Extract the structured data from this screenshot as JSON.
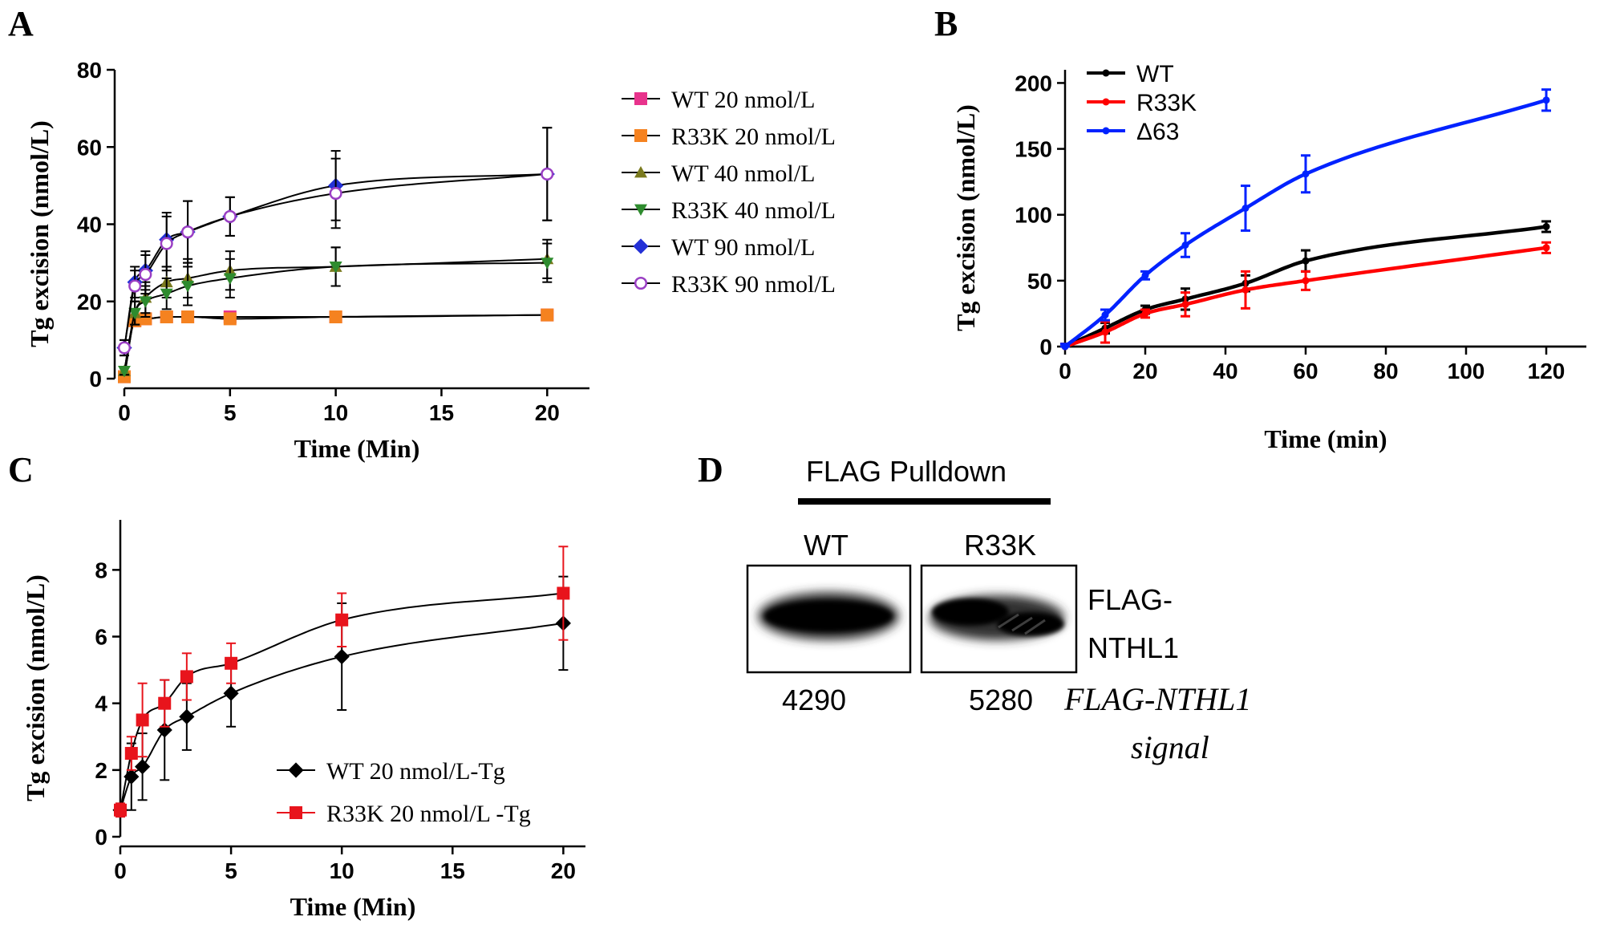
{
  "panels": {
    "A": "A",
    "B": "B",
    "C": "C",
    "D": "D"
  },
  "chart_data": [
    {
      "id": "A",
      "type": "scatter",
      "xlabel": "Time (Min)",
      "ylabel": "Tg excision (nmol/L)",
      "xlim": [
        0,
        22
      ],
      "ylim": [
        0,
        80
      ],
      "xticks": [
        0,
        5,
        10,
        15,
        20
      ],
      "yticks": [
        0,
        20,
        40,
        60,
        80
      ],
      "legend_position": "right",
      "series": [
        {
          "name": "WT 20 nmol/L",
          "color": "#e8338c",
          "marker": "square",
          "x": [
            0,
            0.5,
            1,
            2,
            3,
            5,
            10,
            20
          ],
          "y": [
            0.5,
            15,
            15.5,
            16,
            16,
            16,
            16,
            16.5
          ],
          "err": [
            0.5,
            1,
            1,
            1,
            1,
            1,
            1,
            1
          ]
        },
        {
          "name": "R33K 20 nmol/L",
          "color": "#f58220",
          "marker": "square",
          "x": [
            0,
            0.5,
            1,
            2,
            3,
            5,
            10,
            20
          ],
          "y": [
            0.5,
            15,
            15.5,
            16,
            16,
            15.5,
            16,
            16.5
          ],
          "err": [
            0.5,
            1,
            1,
            1,
            1,
            1,
            1,
            1
          ]
        },
        {
          "name": "WT 40 nmol/L",
          "color": "#7a7a1e",
          "marker": "triangle-up",
          "x": [
            0,
            0.5,
            1,
            2,
            3,
            5,
            10,
            20
          ],
          "y": [
            2,
            17,
            21,
            25,
            26,
            28,
            29,
            31
          ],
          "err": [
            1,
            3,
            4,
            4,
            5,
            5,
            5,
            5
          ]
        },
        {
          "name": "R33K 40 nmol/L",
          "color": "#2e8b2e",
          "marker": "triangle-down",
          "x": [
            0,
            0.5,
            1,
            2,
            3,
            5,
            10,
            20
          ],
          "y": [
            2,
            17,
            20,
            22,
            24,
            26,
            29,
            30
          ],
          "err": [
            1,
            3,
            4,
            4,
            5,
            5,
            5,
            5
          ]
        },
        {
          "name": "WT 90 nmol/L",
          "color": "#2431d6",
          "marker": "diamond",
          "x": [
            0,
            0.5,
            1,
            2,
            3,
            5,
            10,
            20
          ],
          "y": [
            8,
            25,
            28,
            36,
            38,
            42,
            50,
            53
          ],
          "err": [
            2,
            4,
            5,
            7,
            8,
            5,
            9,
            12
          ]
        },
        {
          "name": "R33K 90 nmol/L",
          "color": "#9a3fc4",
          "marker": "open-circle",
          "x": [
            0,
            0.5,
            1,
            2,
            3,
            5,
            10,
            20
          ],
          "y": [
            8,
            24,
            27,
            35,
            38,
            42,
            48,
            53
          ],
          "err": [
            2,
            4,
            5,
            7,
            8,
            5,
            9,
            12
          ]
        }
      ]
    },
    {
      "id": "B",
      "type": "line",
      "xlabel": "Time (min)",
      "ylabel": "Tg excision (nmol/L)",
      "xlim": [
        0,
        130
      ],
      "ylim": [
        0,
        210
      ],
      "xticks": [
        0,
        20,
        40,
        60,
        80,
        100,
        120
      ],
      "yticks": [
        0,
        50,
        100,
        150,
        200
      ],
      "legend_position": "top-left",
      "series": [
        {
          "name": "WT",
          "color": "#000000",
          "x": [
            0,
            10,
            20,
            30,
            45,
            60,
            120
          ],
          "y": [
            0,
            14,
            28,
            36,
            48,
            65,
            91
          ],
          "err": [
            2,
            4,
            3,
            8,
            6,
            8,
            4
          ]
        },
        {
          "name": "R33K",
          "color": "#ff0000",
          "x": [
            0,
            10,
            20,
            30,
            45,
            60,
            120
          ],
          "y": [
            0,
            11,
            25,
            32,
            43,
            50,
            75
          ],
          "err": [
            2,
            8,
            3,
            9,
            14,
            7,
            4
          ]
        },
        {
          "name": "Δ63",
          "color": "#0022ff",
          "x": [
            0,
            10,
            20,
            30,
            45,
            60,
            120
          ],
          "y": [
            0,
            24,
            54,
            77,
            105,
            131,
            187
          ],
          "err": [
            2,
            4,
            3,
            9,
            17,
            14,
            8
          ]
        }
      ]
    },
    {
      "id": "C",
      "type": "scatter",
      "xlabel": "Time (Min)",
      "ylabel": "Tg excision (nmol/L)",
      "xlim": [
        0,
        21
      ],
      "ylim": [
        0,
        9.5
      ],
      "xticks": [
        0,
        5,
        10,
        15,
        20
      ],
      "yticks": [
        0,
        2,
        4,
        6,
        8
      ],
      "legend_position": "bottom-right",
      "series": [
        {
          "name": "WT 20 nmol/L-Tg",
          "color": "#000000",
          "marker": "diamond",
          "x": [
            0,
            0.5,
            1,
            2,
            3,
            5,
            10,
            20
          ],
          "y": [
            0.8,
            1.8,
            2.1,
            3.2,
            3.6,
            4.3,
            5.4,
            6.4
          ],
          "err": [
            0.2,
            1.0,
            1.0,
            1.5,
            1.0,
            1.0,
            1.6,
            1.4
          ]
        },
        {
          "name": "R33K 20 nmol/L -Tg",
          "color": "#e8141c",
          "marker": "square",
          "x": [
            0,
            0.5,
            1,
            2,
            3,
            5,
            10,
            20
          ],
          "y": [
            0.8,
            2.5,
            3.5,
            4.0,
            4.8,
            5.2,
            6.5,
            7.3
          ],
          "err": [
            0.2,
            0.5,
            1.1,
            0.7,
            0.7,
            0.6,
            0.8,
            1.4
          ]
        }
      ]
    }
  ],
  "blot": {
    "title": "FLAG Pulldown",
    "lanes": [
      "WT",
      "R33K"
    ],
    "band_label_line1": "FLAG-",
    "band_label_line2": "NTHL1",
    "signals": [
      "4290",
      "5280"
    ],
    "signal_label_line1": "FLAG-NTHL1",
    "signal_label_line2": "signal"
  }
}
